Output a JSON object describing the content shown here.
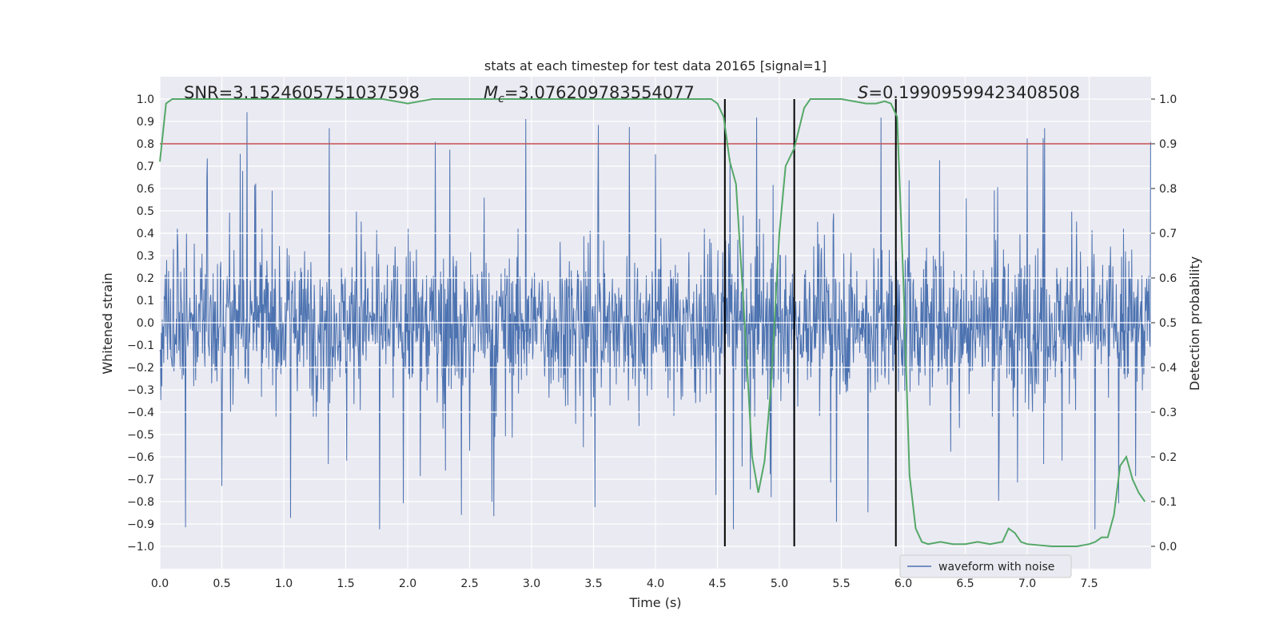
{
  "chart_data": {
    "type": "line",
    "title": "stats at each timestep for test data 20165 [signal=1]",
    "xlabel": "Time (s)",
    "ylabel_left": "Whitened strain",
    "ylabel_right": "Detection probability",
    "xlim": [
      0.0,
      8.0
    ],
    "ylim_left": [
      -1.1,
      1.1
    ],
    "ylim_right": [
      -0.05,
      1.05
    ],
    "x_ticks": [
      0.0,
      0.5,
      1.0,
      1.5,
      2.0,
      2.5,
      3.0,
      3.5,
      4.0,
      4.5,
      5.0,
      5.5,
      6.0,
      6.5,
      7.0,
      7.5
    ],
    "x_tick_labels": [
      "0.0",
      "0.5",
      "1.0",
      "1.5",
      "2.0",
      "2.5",
      "3.0",
      "3.5",
      "4.0",
      "4.5",
      "5.0",
      "5.5",
      "6.0",
      "6.5",
      "7.0",
      "7.5"
    ],
    "y_left_ticks": [
      1.0,
      0.9,
      0.8,
      0.7,
      0.6,
      0.5,
      0.4,
      0.3,
      0.2,
      0.1,
      0.0,
      -0.1,
      -0.2,
      -0.3,
      -0.4,
      -0.5,
      -0.6,
      -0.7,
      -0.8,
      -0.9,
      -1.0
    ],
    "y_left_tick_labels": [
      "1.0",
      "0.9",
      "0.8",
      "0.7",
      "0.6",
      "0.5",
      "0.4",
      "0.3",
      "0.2",
      "0.1",
      "0.0",
      "−0.1",
      "−0.2",
      "−0.3",
      "−0.4",
      "−0.5",
      "−0.6",
      "−0.7",
      "−0.8",
      "−0.9",
      "−1.0"
    ],
    "y_right_ticks": [
      1.0,
      0.9,
      0.8,
      0.7,
      0.6,
      0.5,
      0.4,
      0.3,
      0.2,
      0.1,
      0.0
    ],
    "y_right_tick_labels": [
      "1.0",
      "0.9",
      "0.8",
      "0.7",
      "0.6",
      "0.5",
      "0.4",
      "0.3",
      "0.2",
      "0.1",
      "0.0"
    ],
    "threshold": {
      "value": 0.9,
      "axis": "right",
      "color": "#c44e52"
    },
    "vertical_lines": [
      4.56,
      5.12,
      5.94
    ],
    "annotations": {
      "snr": "SNR=3.1524605751037598",
      "mc_symbol": "M",
      "mc_sub": "c",
      "mc_value": "=3.076209783554077",
      "s_symbol": "S",
      "s_value": "=0.19909599423408508"
    },
    "waveform": {
      "name": "waveform with noise",
      "color": "#4c72b0",
      "sample_rate_hz": 256,
      "duration_s": 8.0,
      "typical_envelope": 0.42,
      "peak_envelope": 1.0
    },
    "detection_probability": {
      "color": "#55a868",
      "x": [
        0.0,
        0.05,
        0.1,
        0.2,
        0.3,
        0.5,
        0.8,
        1.0,
        1.2,
        1.5,
        1.8,
        2.0,
        2.1,
        2.2,
        2.3,
        2.5,
        3.0,
        3.5,
        4.0,
        4.3,
        4.45,
        4.5,
        4.55,
        4.6,
        4.65,
        4.72,
        4.78,
        4.83,
        4.88,
        4.93,
        4.97,
        5.0,
        5.05,
        5.12,
        5.2,
        5.25,
        5.3,
        5.5,
        5.7,
        5.78,
        5.85,
        5.9,
        5.95,
        6.0,
        6.05,
        6.1,
        6.15,
        6.2,
        6.3,
        6.4,
        6.5,
        6.6,
        6.7,
        6.8,
        6.85,
        6.9,
        6.95,
        7.0,
        7.2,
        7.4,
        7.5,
        7.55,
        7.6,
        7.65,
        7.7,
        7.75,
        7.8,
        7.85,
        7.9,
        7.95
      ],
      "y": [
        0.86,
        0.99,
        1.0,
        1.0,
        1.0,
        1.0,
        1.0,
        1.0,
        1.0,
        1.0,
        1.0,
        0.99,
        0.995,
        1.0,
        1.0,
        1.0,
        1.0,
        1.0,
        1.0,
        1.0,
        1.0,
        0.99,
        0.96,
        0.86,
        0.81,
        0.5,
        0.2,
        0.12,
        0.19,
        0.35,
        0.55,
        0.7,
        0.85,
        0.89,
        0.98,
        1.0,
        1.0,
        1.0,
        0.99,
        0.99,
        0.995,
        0.99,
        0.96,
        0.6,
        0.16,
        0.04,
        0.01,
        0.005,
        0.01,
        0.005,
        0.005,
        0.01,
        0.005,
        0.01,
        0.04,
        0.03,
        0.01,
        0.005,
        0.0,
        0.0,
        0.005,
        0.01,
        0.02,
        0.02,
        0.07,
        0.18,
        0.2,
        0.15,
        0.12,
        0.1
      ]
    }
  }
}
